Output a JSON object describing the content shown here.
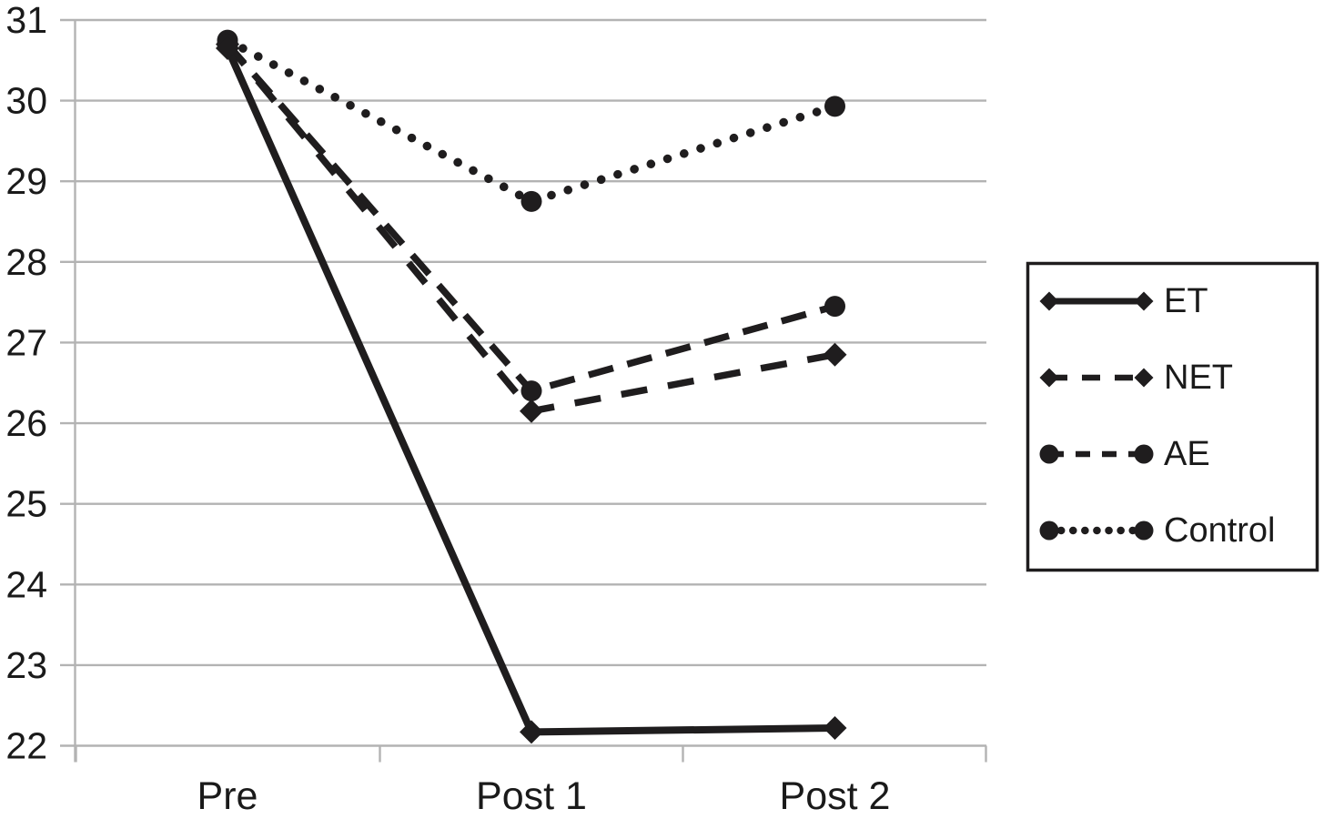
{
  "chart_data": {
    "type": "line",
    "categories": [
      "Pre",
      "Post 1",
      "Post 2"
    ],
    "series": [
      {
        "name": "ET",
        "values": [
          30.65,
          22.17,
          22.22
        ],
        "line": "solid",
        "marker": "diamond"
      },
      {
        "name": "NET",
        "values": [
          30.7,
          26.15,
          26.85
        ],
        "line": "long-dash",
        "marker": "diamond"
      },
      {
        "name": "AE",
        "values": [
          30.7,
          26.4,
          27.45
        ],
        "line": "dash",
        "marker": "circle"
      },
      {
        "name": "Control",
        "values": [
          30.75,
          28.75,
          29.93
        ],
        "line": "dot",
        "marker": "circle"
      }
    ],
    "title": "",
    "xlabel": "",
    "ylabel": "",
    "ylim": [
      22,
      31
    ],
    "yticks": [
      31,
      30,
      29,
      28,
      27,
      26,
      25,
      24,
      23,
      22
    ],
    "grid": true,
    "legend_position": "right",
    "legend_entries": [
      "ET",
      "NET",
      "AE",
      "Control"
    ],
    "colors": {
      "series_line": "#1f1d1e",
      "text": "#1a1a1a",
      "gridline": "#b3b3b3",
      "axis": "#b3b3b3",
      "background": "#ffffff",
      "legend_border": "#1f1d1e"
    }
  }
}
